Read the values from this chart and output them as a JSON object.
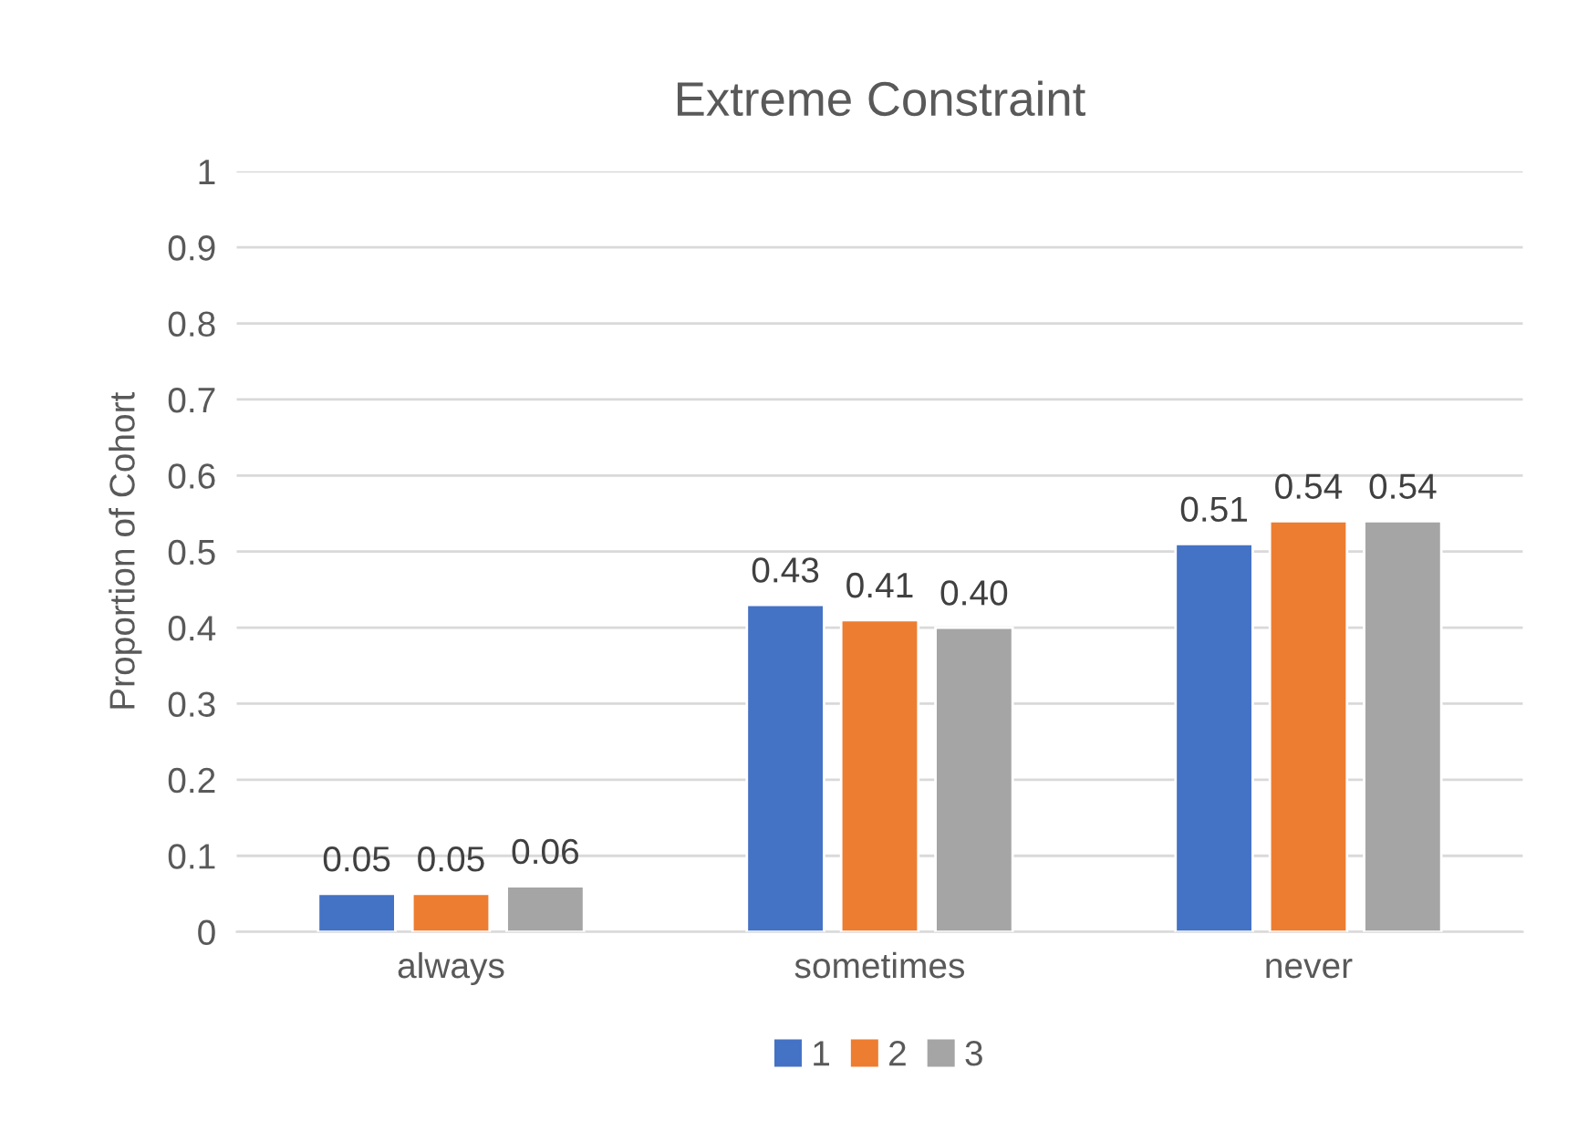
{
  "chart_data": {
    "type": "bar",
    "title": "Extreme Constraint",
    "ylabel": "Proportion of Cohort",
    "categories": [
      "always",
      "sometimes",
      "never"
    ],
    "series": [
      {
        "name": "1",
        "color": "#4472c4",
        "values": [
          0.05,
          0.43,
          0.51
        ],
        "value_labels": [
          "0.05",
          "0.43",
          "0.51"
        ]
      },
      {
        "name": "2",
        "color": "#ed7d31",
        "values": [
          0.05,
          0.41,
          0.54
        ],
        "value_labels": [
          "0.05",
          "0.41",
          "0.54"
        ]
      },
      {
        "name": "3",
        "color": "#a5a5a5",
        "values": [
          0.06,
          0.4,
          0.54
        ],
        "value_labels": [
          "0.06",
          "0.40",
          "0.54"
        ]
      }
    ],
    "ylim": [
      0,
      1
    ],
    "yticks": [
      0,
      0.1,
      0.2,
      0.3,
      0.4,
      0.5,
      0.6,
      0.7,
      0.8,
      0.9,
      1
    ],
    "grid": "y",
    "legend": "bottom"
  }
}
